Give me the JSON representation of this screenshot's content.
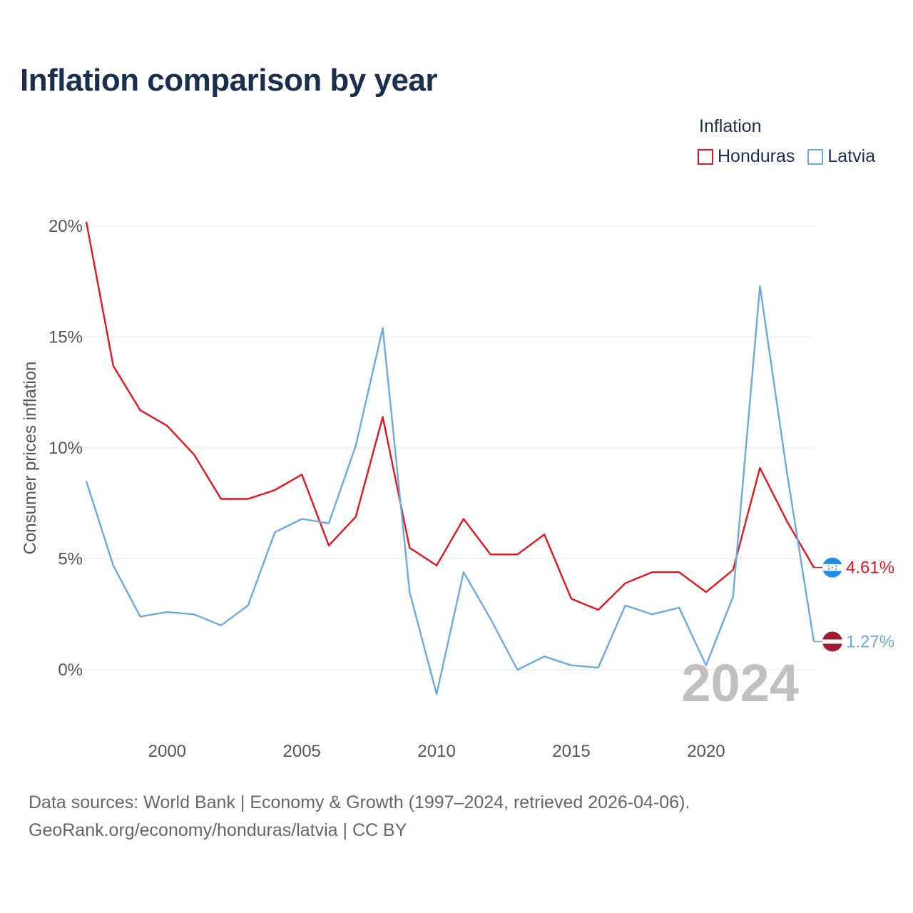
{
  "title": "Inflation comparison by year",
  "legend": {
    "title": "Inflation",
    "items": [
      {
        "label": "Honduras",
        "color": "#e8141c"
      },
      {
        "label": "Latvia",
        "color": "#6aaae4"
      }
    ]
  },
  "footer": {
    "line1": "Data sources: World Bank | Economy & Growth (1997–2024, retrieved 2026-04-06).",
    "line2": "GeoRank.org/economy/honduras/latvia | CC BY"
  },
  "chart_data": {
    "type": "line",
    "title": "Inflation comparison by year",
    "xlabel": "",
    "ylabel": "Consumer prices inflation",
    "xlim": [
      1997,
      2024
    ],
    "ylim": [
      -2.5,
      22
    ],
    "grid": true,
    "current_year_label": "2024",
    "x_ticks": [
      {
        "value": 2000,
        "label": "2000"
      },
      {
        "value": 2005,
        "label": "2005"
      },
      {
        "value": 2010,
        "label": "2010"
      },
      {
        "value": 2015,
        "label": "2015"
      },
      {
        "value": 2020,
        "label": "2020"
      }
    ],
    "y_ticks": [
      {
        "value": 0,
        "label": "0%"
      },
      {
        "value": 5,
        "label": "5%"
      },
      {
        "value": 10,
        "label": "10%"
      },
      {
        "value": 15,
        "label": "15%"
      },
      {
        "value": 20,
        "label": "20%"
      }
    ],
    "x": [
      1997,
      1998,
      1999,
      2000,
      2001,
      2002,
      2003,
      2004,
      2005,
      2006,
      2007,
      2008,
      2009,
      2010,
      2011,
      2012,
      2013,
      2014,
      2015,
      2016,
      2017,
      2018,
      2019,
      2020,
      2021,
      2022,
      2023,
      2024
    ],
    "series": [
      {
        "name": "Honduras",
        "color": "#e8141c",
        "end_label": "4.61%",
        "values": [
          20.2,
          13.7,
          11.7,
          11.0,
          9.7,
          7.7,
          7.7,
          8.1,
          8.8,
          5.6,
          6.9,
          11.4,
          5.5,
          4.7,
          6.8,
          5.2,
          5.2,
          6.1,
          3.2,
          2.7,
          3.9,
          4.4,
          4.4,
          3.5,
          4.5,
          9.1,
          6.7,
          4.61
        ]
      },
      {
        "name": "Latvia",
        "color": "#6aaae4",
        "end_label": "1.27%",
        "values": [
          8.5,
          4.7,
          2.4,
          2.6,
          2.5,
          2.0,
          2.9,
          6.2,
          6.8,
          6.6,
          10.1,
          15.4,
          3.5,
          -1.1,
          4.4,
          2.3,
          0.0,
          0.6,
          0.2,
          0.1,
          2.9,
          2.5,
          2.8,
          0.2,
          3.3,
          17.3,
          8.9,
          1.27
        ]
      }
    ]
  }
}
